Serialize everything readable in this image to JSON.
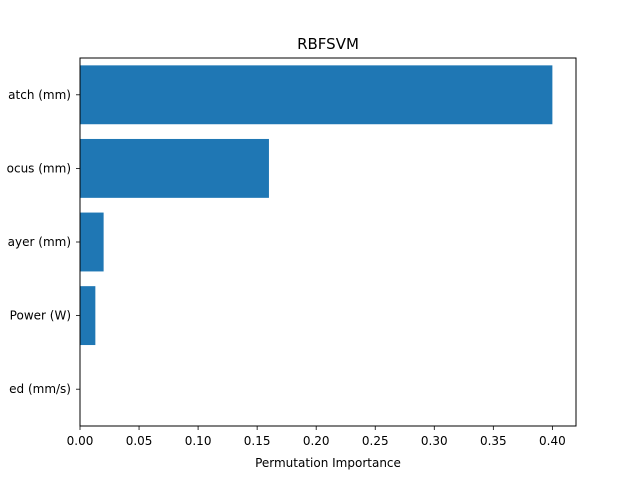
{
  "chart_data": {
    "type": "bar",
    "orientation": "horizontal",
    "title": "RBFSVM",
    "xlabel": "Permutation Importance",
    "ylabel": "",
    "categories": [
      "atch (mm)",
      "ocus (mm)",
      "ayer (mm)",
      "Power (W)",
      "ed (mm/s)"
    ],
    "values": [
      0.4,
      0.16,
      0.02,
      0.013,
      0.0
    ],
    "xlim": [
      0.0,
      0.42
    ],
    "xticks": [
      "0.00",
      "0.05",
      "0.10",
      "0.15",
      "0.20",
      "0.25",
      "0.30",
      "0.35",
      "0.40"
    ],
    "bar_color": "#1f77b4",
    "grid": false,
    "legend": "none"
  }
}
